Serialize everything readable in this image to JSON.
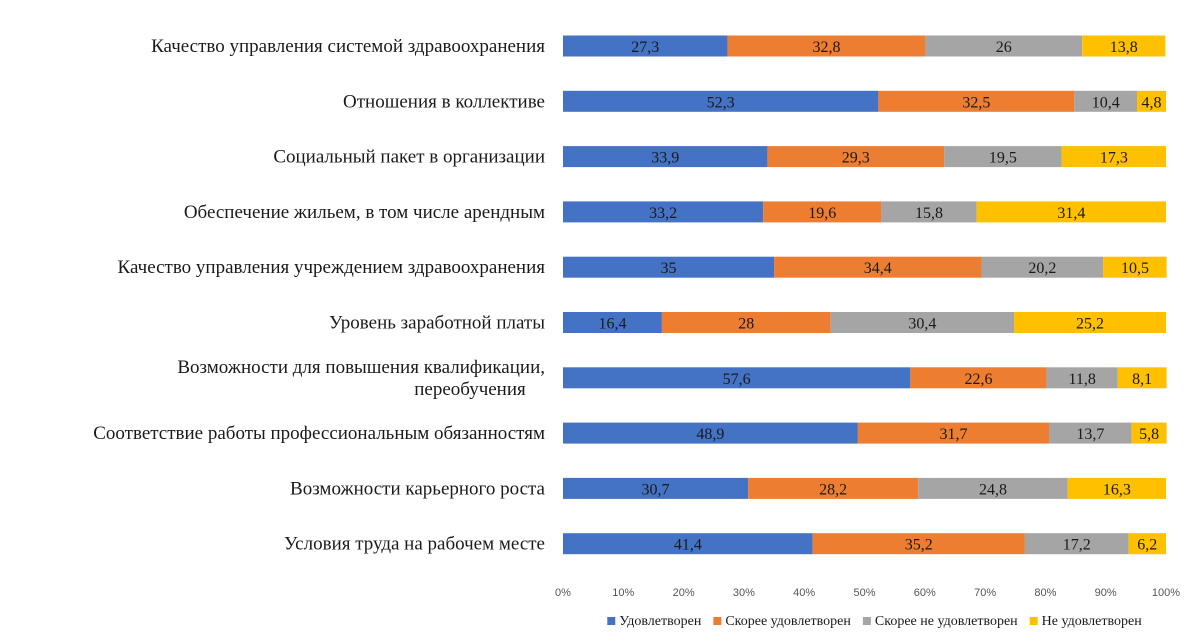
{
  "chart_data": {
    "type": "bar",
    "orientation": "horizontal",
    "stacked": "percent",
    "categories": [
      "Качество управления системой здравоохранения",
      "Отношения в коллективе",
      "Социальный пакет в организации",
      "Обеспечение жильем, в том числе арендным",
      "Качество управления учреждением здравоохранения",
      "Уровень заработной платы",
      "Возможности для повышения квалификации, переобучения",
      "Соответствие работы профессиональным обязанностям",
      "Возможности карьерного роста",
      "Условия труда на рабочем месте"
    ],
    "category_lines": [
      [
        "Качество управления системой здравоохранения"
      ],
      [
        "Отношения в коллективе"
      ],
      [
        "Социальный пакет в организации"
      ],
      [
        "Обеспечение жильем, в том числе арендным"
      ],
      [
        "Качество управления учреждением здравоохранения"
      ],
      [
        "Уровень заработной платы"
      ],
      [
        "Возможности для повышения квалификации,",
        "переобучения"
      ],
      [
        "Соответствие работы профессиональным обязанностям"
      ],
      [
        "Возможности карьерного роста"
      ],
      [
        "Условия труда на рабочем месте"
      ]
    ],
    "series": [
      {
        "name": "Удовлетворен",
        "color": "#4472C4",
        "values": [
          27.3,
          52.3,
          33.9,
          33.2,
          35,
          16.4,
          57.6,
          48.9,
          30.7,
          41.4
        ]
      },
      {
        "name": "Скорее удовлетворен",
        "color": "#ED7D31",
        "values": [
          32.8,
          32.5,
          29.3,
          19.6,
          34.4,
          28,
          22.6,
          31.7,
          28.2,
          35.2
        ]
      },
      {
        "name": "Скорее не удовлетворен",
        "color": "#A5A5A5",
        "values": [
          26,
          10.4,
          19.5,
          15.8,
          20.2,
          30.4,
          11.8,
          13.7,
          24.8,
          17.2
        ]
      },
      {
        "name": "Не удовлетворен",
        "color": "#FFC000",
        "values": [
          13.8,
          4.8,
          17.3,
          31.4,
          10.5,
          25.2,
          8.1,
          5.8,
          16.3,
          6.2
        ]
      }
    ],
    "xticks": [
      "0%",
      "10%",
      "20%",
      "30%",
      "40%",
      "50%",
      "60%",
      "70%",
      "80%",
      "90%",
      "100%"
    ],
    "xlim": [
      0,
      100
    ],
    "legend_position": "bottom",
    "grid": false
  }
}
